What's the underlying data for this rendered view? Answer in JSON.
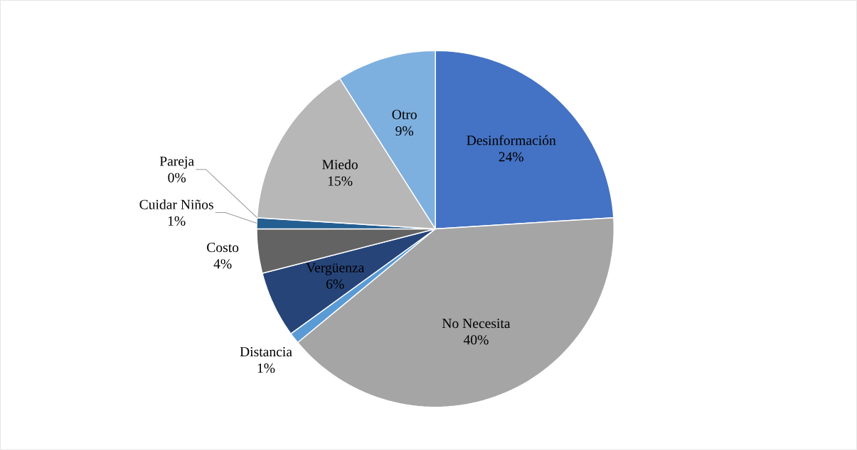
{
  "chart_data": {
    "type": "pie",
    "categories": [
      "Desinformación",
      "No Necesita",
      "Distancia",
      "Vergüenza",
      "Costo",
      "Cuidar Niños",
      "Pareja",
      "Miedo",
      "Otro"
    ],
    "values": [
      24,
      40,
      1,
      6,
      4,
      1,
      0,
      15,
      9
    ],
    "value_labels": [
      "24%",
      "40%",
      "1%",
      "6%",
      "4%",
      "1%",
      "0%",
      "15%",
      "9%"
    ],
    "colors": [
      "#4472c4",
      "#a5a5a5",
      "#5b9bd5",
      "#264478",
      "#636363",
      "#255e91",
      "#9dc3e6",
      "#b7b7b7",
      "#7eb0df"
    ]
  }
}
